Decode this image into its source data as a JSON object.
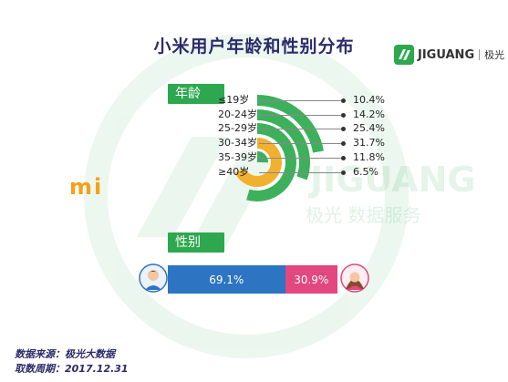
{
  "title": "小米用户年龄和性别分布",
  "brand": {
    "name": "JIGUANG",
    "sub": "极光"
  },
  "watermark": {
    "text": "JIGUANG",
    "sub": "极光 数据服务"
  },
  "logo": {
    "text": "mi",
    "color": "#f6a019"
  },
  "sections": {
    "age": "年龄",
    "gender": "性别"
  },
  "chart_data": [
    {
      "type": "radial-bar",
      "categories": [
        "≤19岁",
        "20-24岁",
        "25-29岁",
        "30-34岁",
        "35-39岁",
        "≥40岁"
      ],
      "values": [
        10.4,
        14.2,
        25.4,
        31.7,
        11.8,
        6.5
      ],
      "value_labels": [
        "10.4%",
        "14.2%",
        "25.4%",
        "31.7%",
        "11.8%",
        "6.5%"
      ],
      "highlight_index": 3,
      "colors": {
        "default": "#3db05c",
        "highlight": "#f2b02f"
      }
    },
    {
      "type": "bar",
      "orientation": "horizontal-stacked",
      "categories": [
        "男",
        "女"
      ],
      "values": [
        69.1,
        30.9
      ],
      "value_labels": [
        "69.1%",
        "30.9%"
      ],
      "colors": [
        "#2d74c2",
        "#e2477d"
      ]
    }
  ],
  "footer": {
    "source": "数据来源：极光大数据",
    "period": "取数周期：2017.12.31"
  }
}
